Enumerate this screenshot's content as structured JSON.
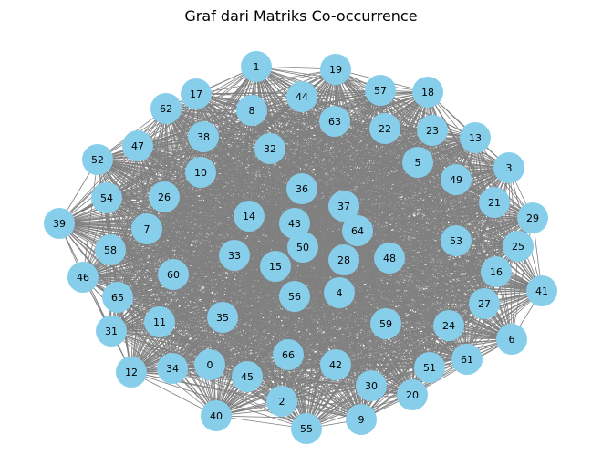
{
  "title": "Graf dari Matriks Co-occurrence",
  "colors": {
    "node": "#87CEEB",
    "edge": "#808080",
    "background": "#ffffff"
  },
  "nodes": [
    "0",
    "1",
    "2",
    "3",
    "4",
    "5",
    "6",
    "7",
    "8",
    "9",
    "10",
    "11",
    "12",
    "13",
    "14",
    "15",
    "16",
    "17",
    "18",
    "19",
    "20",
    "21",
    "22",
    "23",
    "24",
    "25",
    "26",
    "27",
    "28",
    "29",
    "30",
    "31",
    "32",
    "33",
    "34",
    "35",
    "36",
    "37",
    "38",
    "39",
    "40",
    "41",
    "42",
    "43",
    "44",
    "45",
    "46",
    "47",
    "48",
    "49",
    "50",
    "51",
    "52",
    "53",
    "54",
    "55",
    "56",
    "57",
    "58",
    "59",
    "60",
    "61",
    "62",
    "63",
    "64",
    "65",
    "66"
  ],
  "edges": "complete graph (every node connected to every other node)"
}
